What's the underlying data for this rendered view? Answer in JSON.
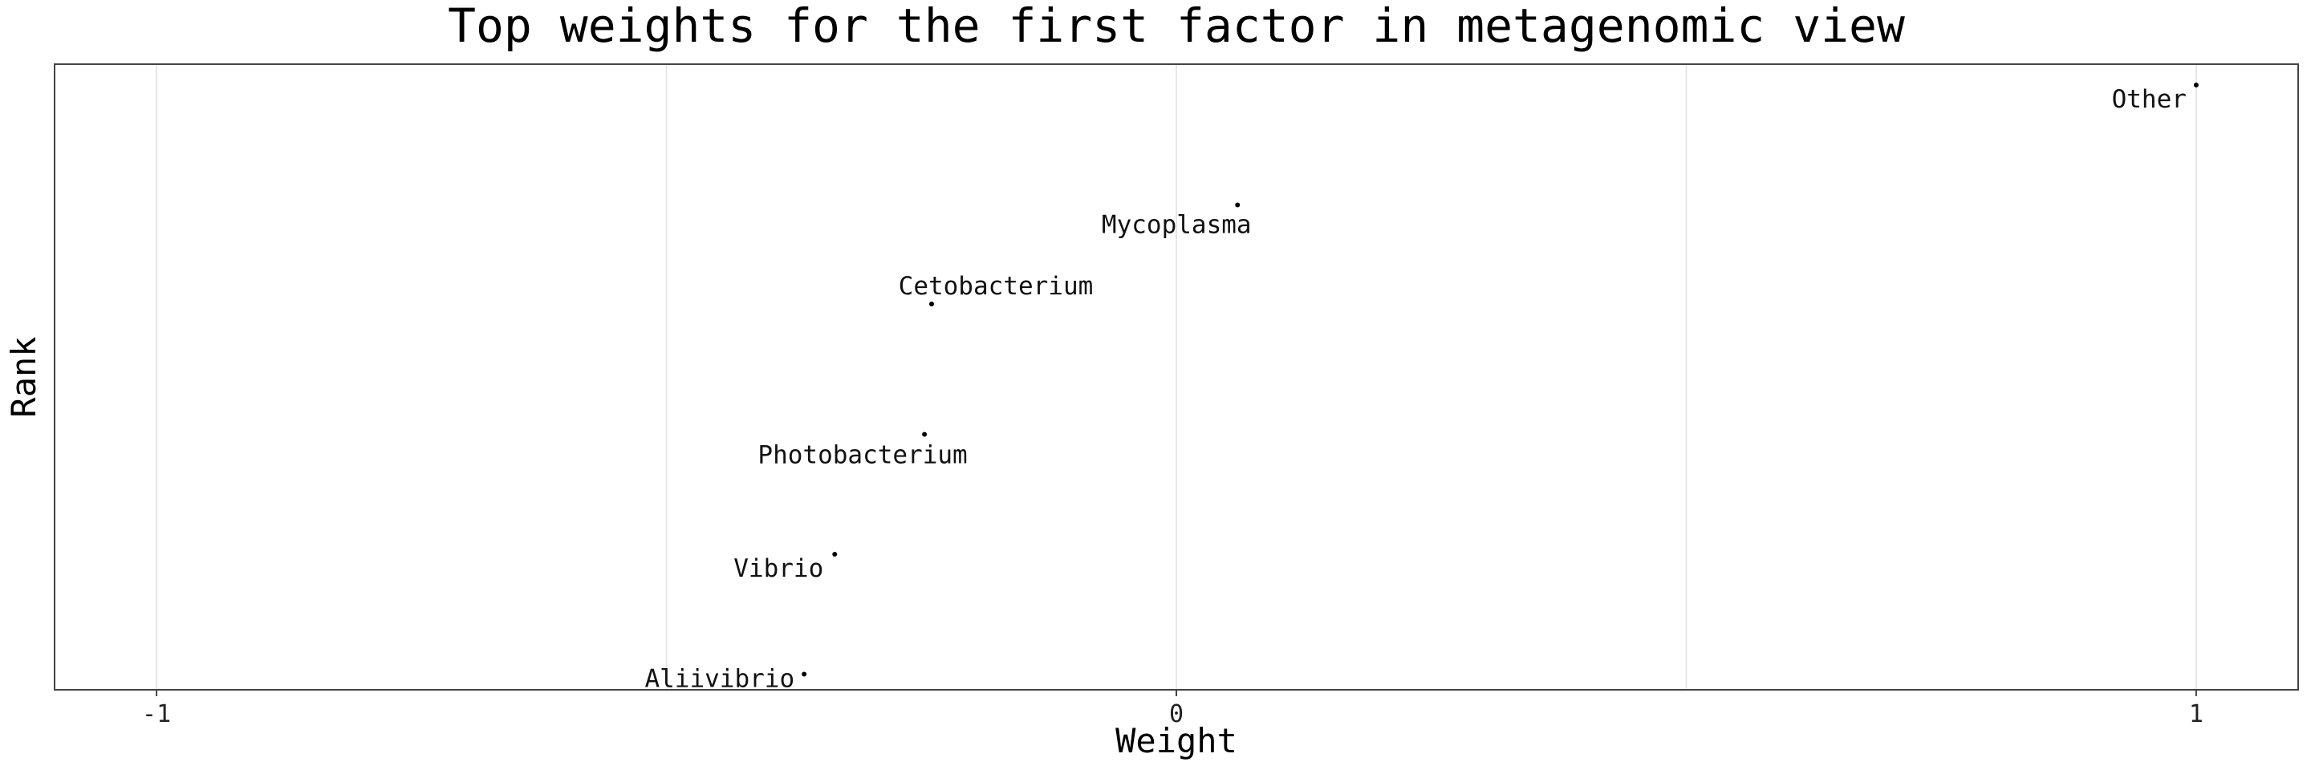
{
  "chart_data": {
    "type": "scatter",
    "title": "Top weights for the first factor in metagenomic view",
    "xlabel": "Weight",
    "ylabel": "Rank",
    "xlim": [
      -1.1,
      1.1
    ],
    "ylim": [
      0.5,
      6.5
    ],
    "x_ticks": [
      -1,
      0,
      1
    ],
    "x_tick_labels": [
      "-1",
      "0",
      "1"
    ],
    "x_minor_grid": [
      -0.5,
      0.5
    ],
    "grid": true,
    "legend": "none",
    "points": [
      {
        "label": "Other",
        "x": 1.0,
        "y": 6.3
      },
      {
        "label": "Mycoplasma",
        "x": 0.06,
        "y": 5.15
      },
      {
        "label": "Cetobacterium",
        "x": -0.24,
        "y": 4.2
      },
      {
        "label": "Photobacterium",
        "x": -0.247,
        "y": 2.95
      },
      {
        "label": "Vibrio",
        "x": -0.335,
        "y": 1.8
      },
      {
        "label": "Aliivibrio",
        "x": -0.365,
        "y": 0.65
      }
    ],
    "point_color": "#000000"
  }
}
